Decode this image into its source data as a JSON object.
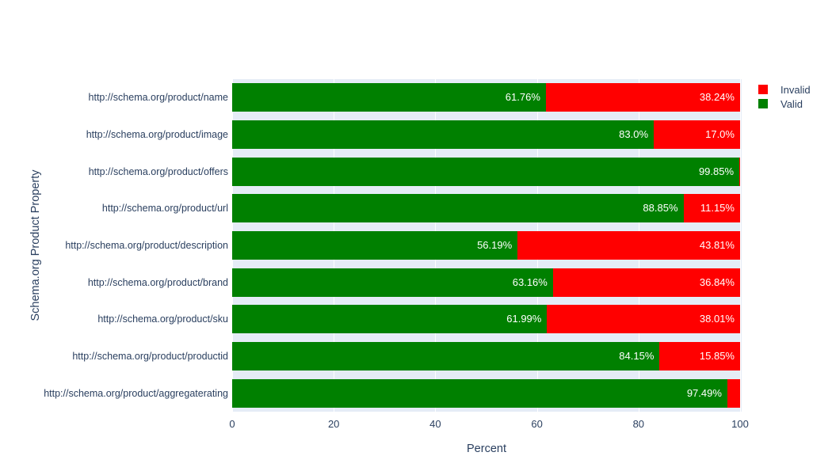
{
  "colors": {
    "page_background": "#ffffff",
    "plot_background": "#e5ecf6",
    "gridline": "#ffffff",
    "text": "#2a3f5f",
    "valid": "#008000",
    "invalid": "#ff0000",
    "bar_label": "#ffffff"
  },
  "legend": {
    "position": "top-right",
    "items": [
      {
        "label": "Invalid",
        "color": "#ff0000"
      },
      {
        "label": "Valid",
        "color": "#008000"
      }
    ]
  },
  "chart_data": {
    "type": "bar",
    "orientation": "horizontal",
    "stacked": true,
    "title": "",
    "xlabel": "Percent",
    "ylabel": "Schema.org Product Property",
    "xlim": [
      0,
      100
    ],
    "x_ticks": [
      0,
      20,
      40,
      60,
      80,
      100
    ],
    "grid": true,
    "legend_position": "top-right",
    "categories": [
      "http://schema.org/product/name",
      "http://schema.org/product/image",
      "http://schema.org/product/offers",
      "http://schema.org/product/url",
      "http://schema.org/product/description",
      "http://schema.org/product/brand",
      "http://schema.org/product/sku",
      "http://schema.org/product/productid",
      "http://schema.org/product/aggregaterating"
    ],
    "series": [
      {
        "name": "Valid",
        "color": "#008000",
        "values": [
          61.76,
          83.0,
          99.85,
          88.85,
          56.19,
          63.16,
          61.99,
          84.15,
          97.49
        ],
        "labels": [
          "61.76%",
          "83.0%",
          "99.85%",
          "88.85%",
          "56.19%",
          "63.16%",
          "61.99%",
          "84.15%",
          "97.49%"
        ]
      },
      {
        "name": "Invalid",
        "color": "#ff0000",
        "values": [
          38.24,
          17.0,
          0.15,
          11.15,
          43.81,
          36.84,
          38.01,
          15.85,
          2.51
        ],
        "labels": [
          "38.24%",
          "17.0%",
          "",
          "11.15%",
          "43.81%",
          "36.84%",
          "38.01%",
          "15.85%",
          ""
        ]
      }
    ]
  }
}
